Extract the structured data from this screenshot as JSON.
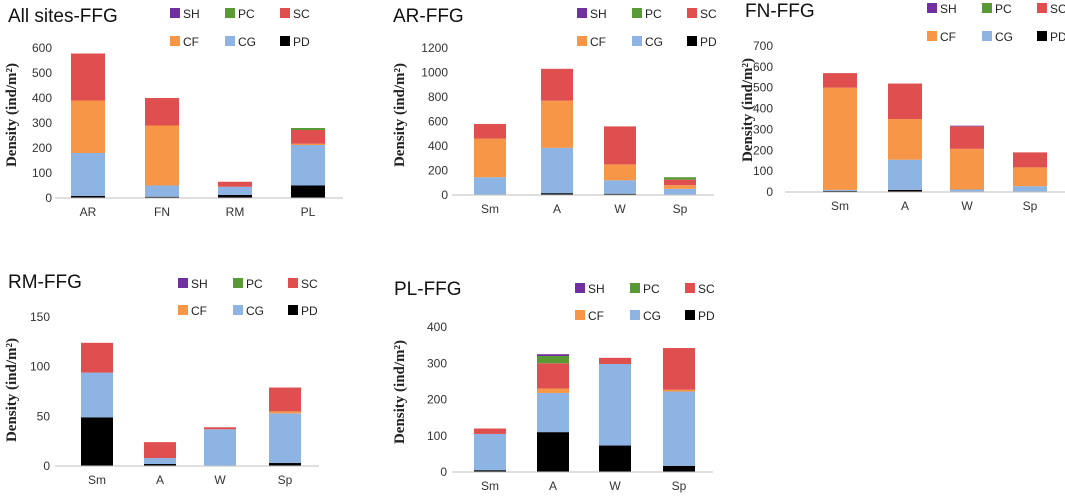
{
  "series_colors": {
    "SH": "#7030a0",
    "PC": "#5a9a34",
    "SC": "#e04f4f",
    "CF": "#f79646",
    "CG": "#8db4e2",
    "PD": "#000000"
  },
  "chart_data": [
    {
      "type": "bar",
      "stacked": true,
      "title": "All sites-FFG",
      "ylabel": "Density (ind/m²)",
      "ylim": [
        0,
        600
      ],
      "yticks": [
        0,
        100,
        200,
        300,
        400,
        500,
        600
      ],
      "ytick_labels": [
        "0",
        "100",
        "200",
        "300",
        "400",
        "500",
        "600"
      ],
      "categories": [
        "AR",
        "FN",
        "RM",
        "PL"
      ],
      "legend": [
        "SH",
        "PC",
        "SC",
        "CF",
        "CG",
        "PD"
      ],
      "series": [
        {
          "name": "PD",
          "values": [
            8,
            5,
            12,
            50
          ]
        },
        {
          "name": "CG",
          "values": [
            172,
            45,
            33,
            162
          ]
        },
        {
          "name": "CF",
          "values": [
            210,
            240,
            0,
            5
          ]
        },
        {
          "name": "SC",
          "values": [
            188,
            110,
            20,
            55
          ]
        },
        {
          "name": "PC",
          "values": [
            0,
            0,
            0,
            8
          ]
        },
        {
          "name": "SH",
          "values": [
            0,
            0,
            0,
            0
          ]
        }
      ]
    },
    {
      "type": "bar",
      "stacked": true,
      "title": "AR-FFG",
      "ylabel": "Density (ind/m²)",
      "ylim": [
        0,
        1200
      ],
      "yticks": [
        0,
        200,
        400,
        600,
        800,
        1000,
        1200
      ],
      "ytick_labels": [
        "0",
        "200",
        "400",
        "600",
        "800",
        "1000",
        "1200"
      ],
      "categories": [
        "Sm",
        "A",
        "W",
        "Sp"
      ],
      "legend": [
        "SH",
        "PC",
        "SC",
        "CF",
        "CG",
        "PD"
      ],
      "series": [
        {
          "name": "PD",
          "values": [
            5,
            15,
            10,
            5
          ]
        },
        {
          "name": "CG",
          "values": [
            140,
            370,
            110,
            45
          ]
        },
        {
          "name": "CF",
          "values": [
            315,
            385,
            130,
            30
          ]
        },
        {
          "name": "SC",
          "values": [
            120,
            260,
            310,
            45
          ]
        },
        {
          "name": "PC",
          "values": [
            0,
            0,
            0,
            20
          ]
        },
        {
          "name": "SH",
          "values": [
            0,
            0,
            0,
            0
          ]
        }
      ]
    },
    {
      "type": "bar",
      "stacked": true,
      "title": "FN-FFG",
      "ylabel": "Density (ind/m²)",
      "ylim": [
        0,
        700
      ],
      "yticks": [
        0,
        100,
        200,
        300,
        400,
        500,
        600,
        700
      ],
      "ytick_labels": [
        "0",
        "100",
        "200",
        "300",
        "400",
        "500",
        "600",
        "700"
      ],
      "categories": [
        "Sm",
        "A",
        "W",
        "Sp"
      ],
      "legend": [
        "SH",
        "PC",
        "SC",
        "CF",
        "CG",
        "PD"
      ],
      "series": [
        {
          "name": "PD",
          "values": [
            5,
            10,
            2,
            3
          ]
        },
        {
          "name": "CG",
          "values": [
            5,
            145,
            10,
            25
          ]
        },
        {
          "name": "CF",
          "values": [
            490,
            195,
            195,
            90
          ]
        },
        {
          "name": "SC",
          "values": [
            70,
            170,
            108,
            72
          ]
        },
        {
          "name": "PC",
          "values": [
            0,
            0,
            0,
            0
          ]
        },
        {
          "name": "SH",
          "values": [
            0,
            0,
            3,
            0
          ]
        }
      ]
    },
    {
      "type": "bar",
      "stacked": true,
      "title": "RM-FFG",
      "ylabel": "Density (ind/m²)",
      "ylim": [
        0,
        150
      ],
      "yticks": [
        0,
        50,
        100,
        150
      ],
      "ytick_labels": [
        "0",
        "50",
        "100",
        "150"
      ],
      "categories": [
        "Sm",
        "A",
        "W",
        "Sp"
      ],
      "legend": [
        "SH",
        "PC",
        "SC",
        "CF",
        "CG",
        "PD"
      ],
      "series": [
        {
          "name": "PD",
          "values": [
            49,
            2,
            0,
            3
          ]
        },
        {
          "name": "CG",
          "values": [
            45,
            6,
            37,
            50
          ]
        },
        {
          "name": "CF",
          "values": [
            0,
            0,
            0,
            2
          ]
        },
        {
          "name": "SC",
          "values": [
            30,
            16,
            2,
            24
          ]
        },
        {
          "name": "PC",
          "values": [
            0,
            0,
            0,
            0
          ]
        },
        {
          "name": "SH",
          "values": [
            0,
            0,
            0,
            0
          ]
        }
      ]
    },
    {
      "type": "bar",
      "stacked": true,
      "title": "PL-FFG",
      "ylabel": "Density (ind/m²)",
      "ylim": [
        0,
        400
      ],
      "yticks": [
        0,
        100,
        200,
        300,
        400
      ],
      "ytick_labels": [
        "0",
        "100",
        "200",
        "300",
        "400"
      ],
      "categories": [
        "Sm",
        "A",
        "W",
        "Sp"
      ],
      "legend": [
        "SH",
        "PC",
        "SC",
        "CF",
        "CG",
        "PD"
      ],
      "series": [
        {
          "name": "PD",
          "values": [
            5,
            110,
            73,
            17
          ]
        },
        {
          "name": "CG",
          "values": [
            100,
            108,
            225,
            205
          ]
        },
        {
          "name": "CF",
          "values": [
            0,
            12,
            0,
            5
          ]
        },
        {
          "name": "SC",
          "values": [
            15,
            70,
            17,
            115
          ]
        },
        {
          "name": "PC",
          "values": [
            0,
            20,
            0,
            0
          ]
        },
        {
          "name": "SH",
          "values": [
            0,
            5,
            0,
            0
          ]
        }
      ]
    }
  ]
}
